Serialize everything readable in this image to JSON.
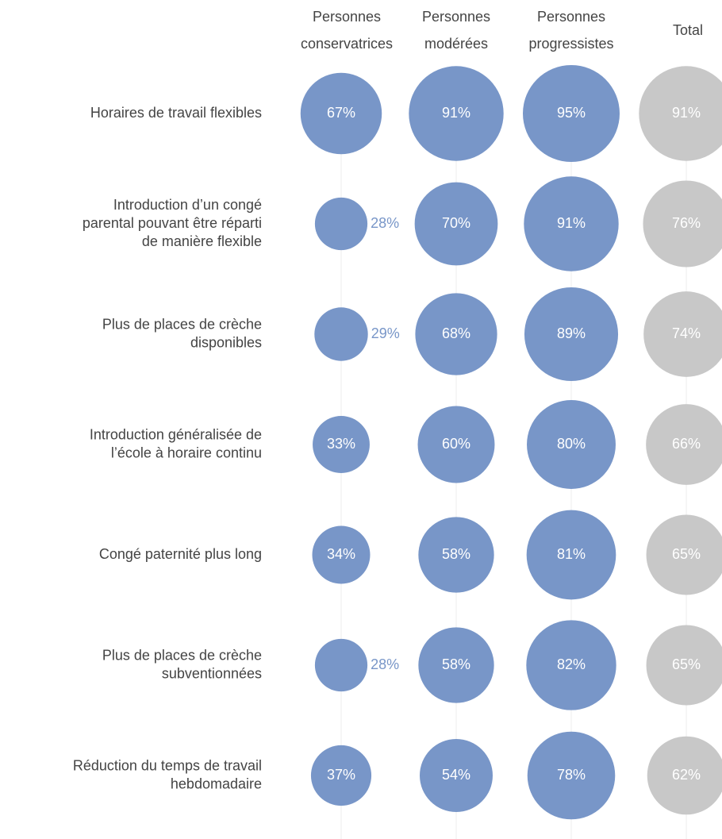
{
  "chart_data": {
    "type": "bubble",
    "categories": [
      "Horaires de travail flexibles",
      "Introduction d’un congé\nparental pouvant être réparti\nde manière flexible",
      "Plus de places de crèche\ndisponibles",
      "Introduction généralisée de\nl’école à horaire continu",
      "Congé paternité plus long",
      "Plus de places de crèche\nsubventionnées",
      "Réduction du temps de travail\nhebdomadaire"
    ],
    "series": [
      {
        "name": "Personnes\nconservatrices",
        "color": "#7896c8",
        "values": [
          67,
          28,
          29,
          33,
          34,
          28,
          37
        ],
        "value_labels": [
          "67%",
          "28%",
          "29%",
          "33%",
          "34%",
          "28%",
          "37%"
        ]
      },
      {
        "name": "Personnes\nmodérées",
        "color": "#7896c8",
        "values": [
          91,
          70,
          68,
          60,
          58,
          58,
          54
        ],
        "value_labels": [
          "91%",
          "70%",
          "68%",
          "60%",
          "58%",
          "58%",
          "54%"
        ]
      },
      {
        "name": "Personnes\nprogressistes",
        "color": "#7896c8",
        "values": [
          95,
          91,
          89,
          80,
          81,
          82,
          78
        ],
        "value_labels": [
          "95%",
          "91%",
          "89%",
          "80%",
          "81%",
          "82%",
          "78%"
        ]
      },
      {
        "name": "Total",
        "color": "#c8c8c8",
        "values": [
          91,
          76,
          74,
          66,
          65,
          65,
          62
        ],
        "value_labels": [
          "91%",
          "76%",
          "74%",
          "66%",
          "65%",
          "65%",
          "62%"
        ]
      }
    ]
  }
}
